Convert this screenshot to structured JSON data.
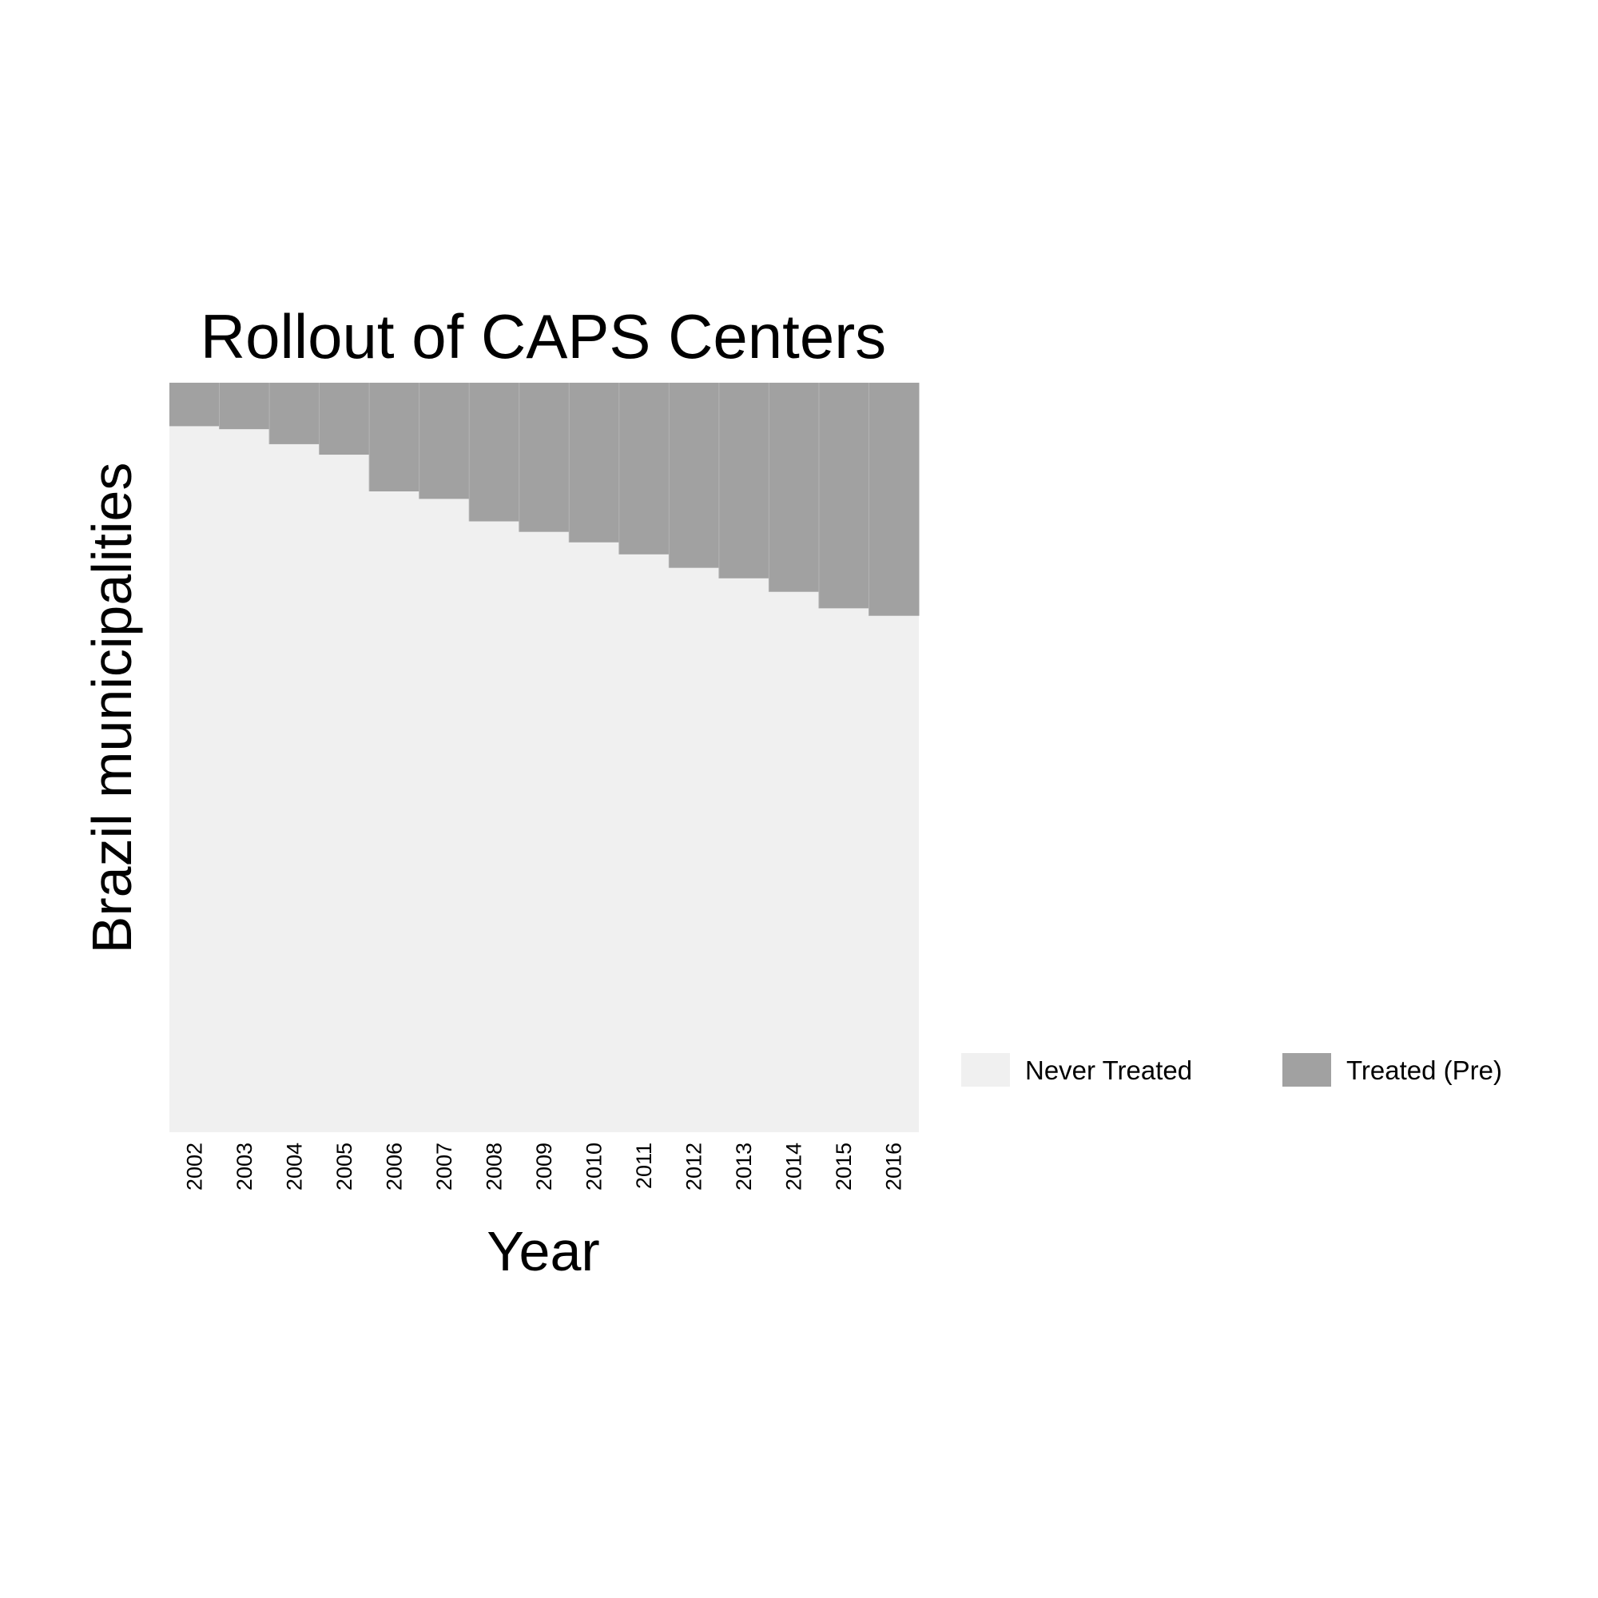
{
  "chart_data": {
    "type": "heatmap",
    "title": "Rollout of CAPS Centers",
    "xlabel": "Year",
    "ylabel": "Brazil municipalities",
    "categories": [
      "2002",
      "2003",
      "2004",
      "2005",
      "2006",
      "2007",
      "2008",
      "2009",
      "2010",
      "2011",
      "2012",
      "2013",
      "2014",
      "2015",
      "2016"
    ],
    "treated_share": [
      0.058,
      0.062,
      0.082,
      0.096,
      0.145,
      0.155,
      0.185,
      0.199,
      0.213,
      0.229,
      0.247,
      0.261,
      0.279,
      0.301,
      0.311
    ],
    "grid": false,
    "legend_position": "bottom-right",
    "legend": [
      {
        "label": "Never Treated",
        "color": "#f0f0f0"
      },
      {
        "label": "Treated (Pre)",
        "color": "#a1a1a1"
      }
    ],
    "colors": {
      "never_treated": "#f0f0f0",
      "treated_pre": "#a1a1a1",
      "background": "#ffffff"
    }
  }
}
